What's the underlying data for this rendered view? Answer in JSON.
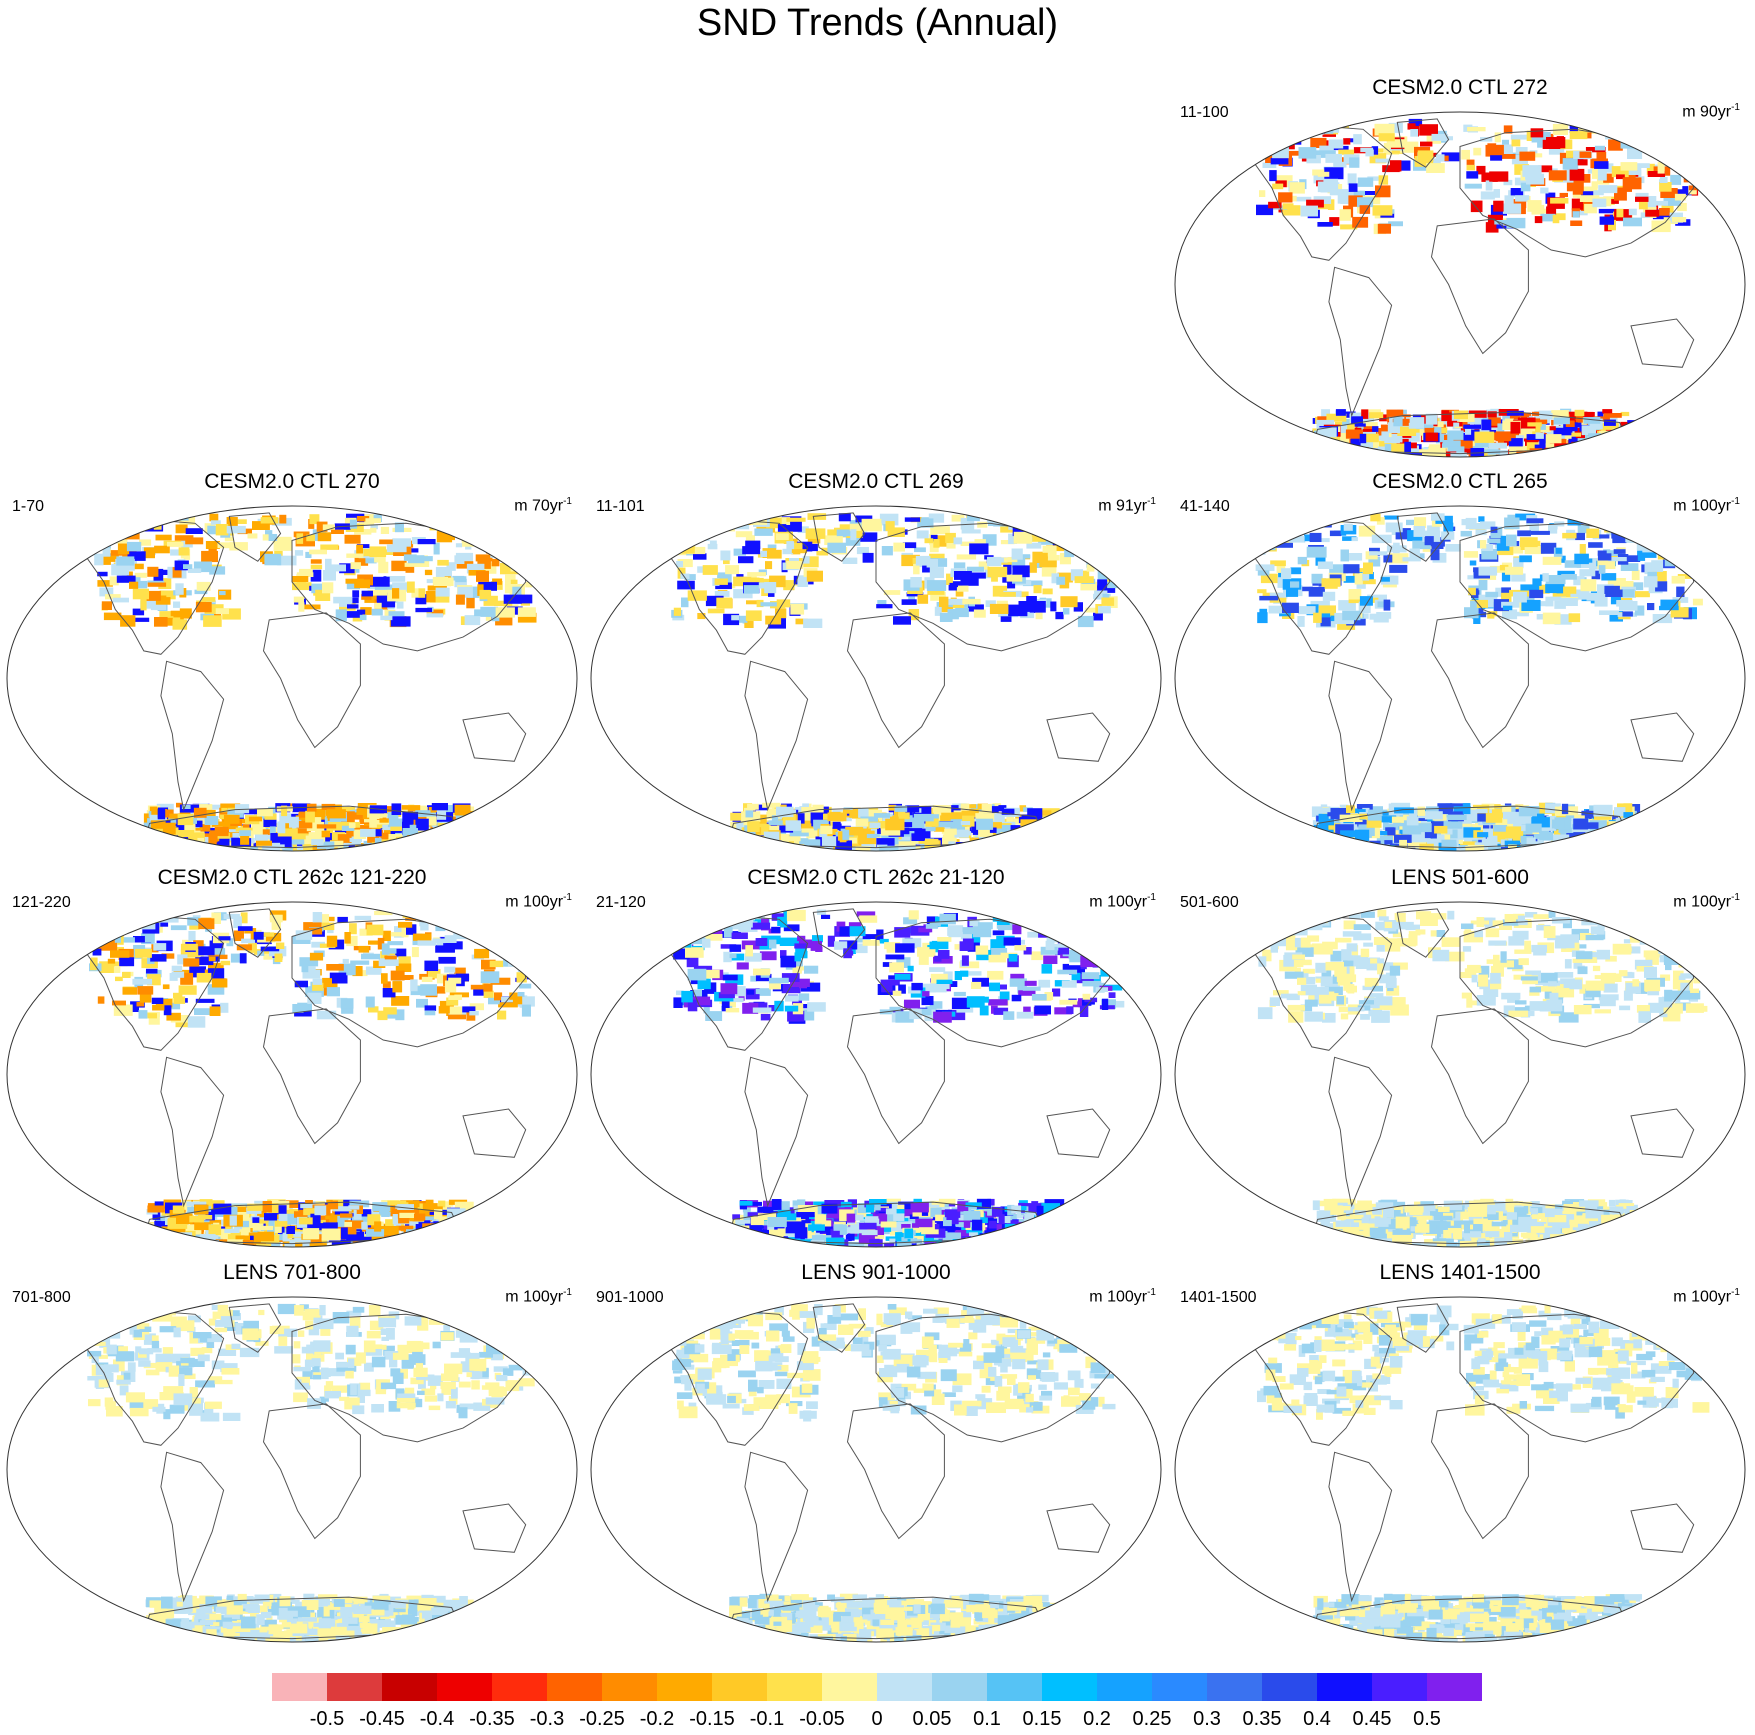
{
  "title": "SND Trends (Annual)",
  "panels": [
    {
      "title": "CESM2.0 CTL 272",
      "left": "11-100",
      "right_prefix": "m 90yr",
      "right_sup": "-1",
      "col": 2,
      "row": 0,
      "pattern": "greenland-red"
    },
    {
      "title": "CESM2.0 CTL 270",
      "left": "1-70",
      "right_prefix": "m 70yr",
      "right_sup": "-1",
      "col": 0,
      "row": 1,
      "pattern": "antarctic-orange"
    },
    {
      "title": "CESM2.0 CTL 269",
      "left": "11-101",
      "right_prefix": "m 91yr",
      "right_sup": "-1",
      "col": 1,
      "row": 1,
      "pattern": "greenland-orange"
    },
    {
      "title": "CESM2.0 CTL 265",
      "left": "41-140",
      "right_prefix": "m 100yr",
      "right_sup": "-1",
      "col": 2,
      "row": 1,
      "pattern": "mixed"
    },
    {
      "title": "CESM2.0 CTL 262c 121-220",
      "left": "121-220",
      "right_prefix": "m 100yr",
      "right_sup": "-1",
      "col": 0,
      "row": 2,
      "pattern": "antarctic-orange"
    },
    {
      "title": "CESM2.0 CTL 262c 21-120",
      "left": "21-120",
      "right_prefix": "m 100yr",
      "right_sup": "-1",
      "col": 1,
      "row": 2,
      "pattern": "purple"
    },
    {
      "title": "LENS 501-600",
      "left": "501-600",
      "right_prefix": "m 100yr",
      "right_sup": "-1",
      "col": 2,
      "row": 2,
      "pattern": "weak"
    },
    {
      "title": "LENS 701-800",
      "left": "701-800",
      "right_prefix": "m 100yr",
      "right_sup": "-1",
      "col": 0,
      "row": 3,
      "pattern": "weak"
    },
    {
      "title": "LENS 901-1000",
      "left": "901-1000",
      "right_prefix": "m 100yr",
      "right_sup": "-1",
      "col": 1,
      "row": 3,
      "pattern": "weak"
    },
    {
      "title": "LENS 1401-1500",
      "left": "1401-1500",
      "right_prefix": "m 100yr",
      "right_sup": "-1",
      "col": 2,
      "row": 3,
      "pattern": "weak"
    }
  ],
  "colorbar": {
    "labels": [
      "-0.5",
      "-0.45",
      "-0.4",
      "-0.35",
      "-0.3",
      "-0.25",
      "-0.2",
      "-0.15",
      "-0.1",
      "-0.05",
      "0",
      "0.05",
      "0.1",
      "0.15",
      "0.2",
      "0.25",
      "0.3",
      "0.35",
      "0.4",
      "0.45",
      "0.5"
    ],
    "colors": [
      "#F9B3B8",
      "#DD3B3C",
      "#C80000",
      "#EE0000",
      "#FF2C0C",
      "#FF6300",
      "#FF8C00",
      "#FFAA00",
      "#FFC926",
      "#FFE14C",
      "#FFF69E",
      "#C1E3F5",
      "#9AD3F0",
      "#56C3F5",
      "#00BFFF",
      "#15A2FF",
      "#2A8AFF",
      "#3A72F0",
      "#2A4BEB",
      "#1010FF",
      "#4A1EFF",
      "#8020EE"
    ]
  }
}
